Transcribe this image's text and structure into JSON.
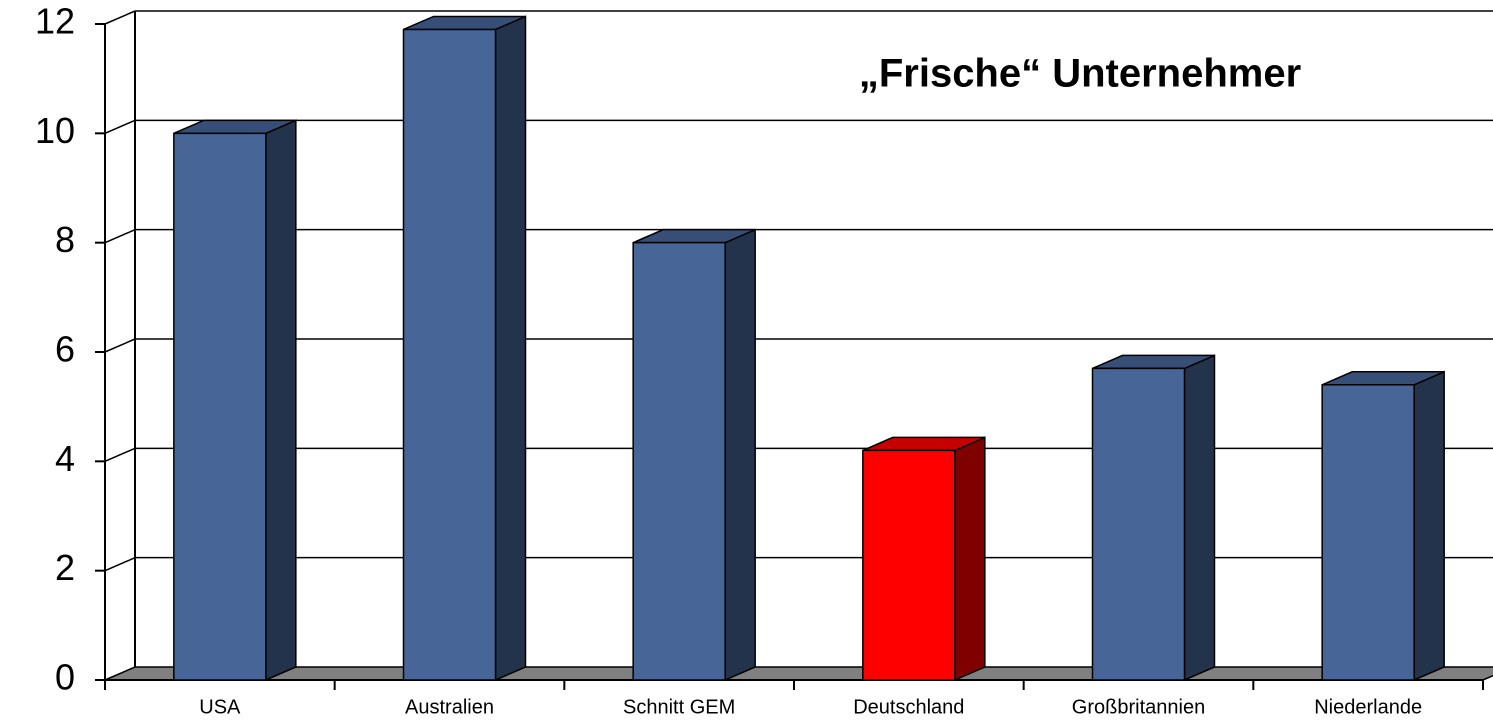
{
  "chart_data": {
    "type": "bar3d",
    "annotation": "„Frische“ Unternehmer",
    "categories": [
      "USA",
      "Australien",
      "Schnitt GEM",
      "Deutschland",
      "Großbritannien",
      "Niederlande"
    ],
    "values": [
      10,
      11.9,
      8,
      4.2,
      5.7,
      5.4
    ],
    "colors": [
      "#476597",
      "#476597",
      "#476597",
      "#ff0000",
      "#476597",
      "#476597"
    ],
    "ylim": [
      0,
      12
    ],
    "yticks": [
      0,
      2,
      4,
      6,
      8,
      10,
      12
    ],
    "grid": true
  }
}
